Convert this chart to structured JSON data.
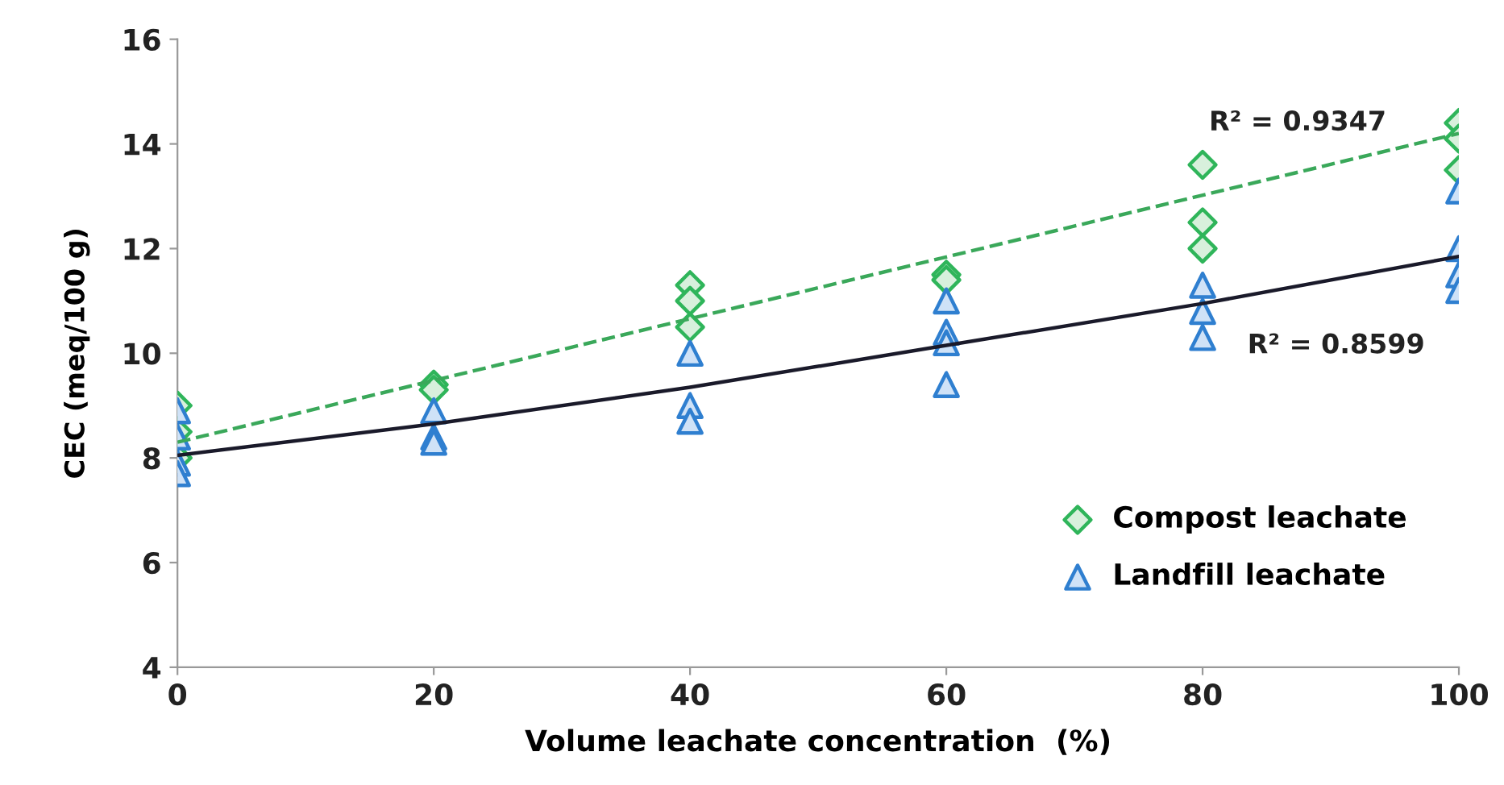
{
  "chart_data": {
    "type": "scatter",
    "xlabel": "Volume leachate concentration  (%)",
    "ylabel": "CEC (meq/100 g)",
    "xlim": [
      0,
      100
    ],
    "xticks": [
      0,
      20,
      40,
      60,
      80,
      100
    ],
    "ylim": [
      4,
      16
    ],
    "yticks": [
      4,
      6,
      8,
      10,
      12,
      14,
      16
    ],
    "grid": false,
    "legend": "bottom right",
    "series": [
      {
        "name": "Compost leachate",
        "color": "#2fb55a",
        "marker": "diamond",
        "x": [
          0,
          0,
          0,
          20,
          20,
          40,
          40,
          40,
          60,
          60,
          80,
          80,
          80,
          100,
          100,
          100
        ],
        "values": [
          9.0,
          8.5,
          8.0,
          9.4,
          9.3,
          11.3,
          11.0,
          10.5,
          11.5,
          11.4,
          13.6,
          12.5,
          12.0,
          14.4,
          14.1,
          13.5
        ]
      },
      {
        "name": "Landfill leachate",
        "color": "#2f7fd0",
        "marker": "triangle",
        "x": [
          0,
          0,
          0,
          0,
          20,
          20,
          20,
          40,
          40,
          40,
          60,
          60,
          60,
          60,
          80,
          80,
          80,
          100,
          100,
          100,
          100
        ],
        "values": [
          8.9,
          8.4,
          7.9,
          7.7,
          8.9,
          8.4,
          8.3,
          10.0,
          9.0,
          8.7,
          11.0,
          10.4,
          10.2,
          9.4,
          11.3,
          10.8,
          10.3,
          13.1,
          12.0,
          11.5,
          11.2
        ]
      },
      {
        "type": "line",
        "color": "#3aa85a",
        "line_style": "dashed",
        "x": [
          0,
          100
        ],
        "values": [
          8.3,
          14.2
        ]
      },
      {
        "type": "line",
        "color": "#1a1a2a",
        "line_style": "solid",
        "x": [
          0,
          20,
          40,
          60,
          80,
          100
        ],
        "values": [
          8.05,
          8.65,
          9.35,
          10.15,
          10.95,
          11.85
        ]
      }
    ],
    "annotations": [
      "R² = 0.9347",
      "R² = 0.8599"
    ]
  }
}
